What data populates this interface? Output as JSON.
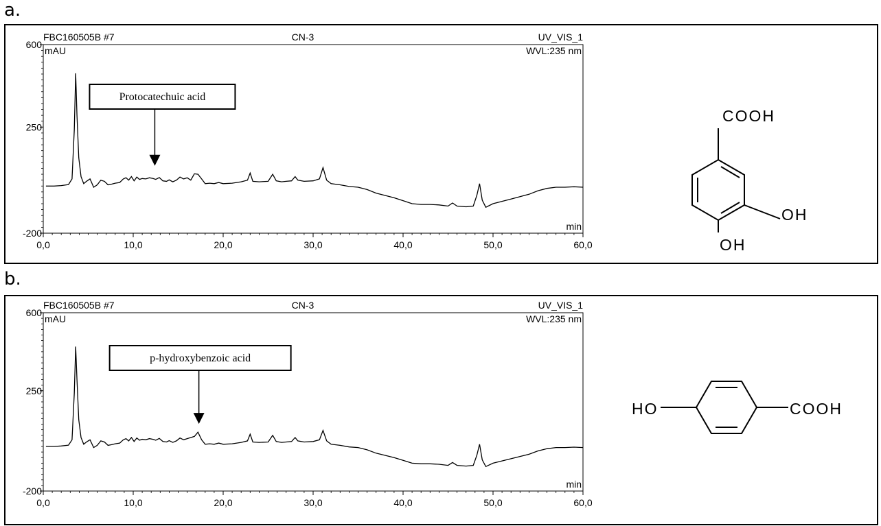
{
  "panels": [
    {
      "letter": "a.",
      "molecule": {
        "type": "protocatechuic",
        "groups": [
          "COOH",
          "OH",
          "OH"
        ]
      },
      "chart_data": {
        "type": "line",
        "header_left": "FBC160505B #7",
        "header_center": "CN-3",
        "header_right": "UV_VIS_1",
        "header_right2": "WVL:235 nm",
        "ylabel": "mAU",
        "xlabel": "min",
        "xlim": [
          0,
          60
        ],
        "ylim": [
          -200,
          600
        ],
        "y_tick_labels": [
          "600",
          "250",
          "-200"
        ],
        "y_tick_values": [
          600,
          250,
          -200
        ],
        "x_tick_labels": [
          "0,0",
          "10,0",
          "20,0",
          "30,0",
          "40,0",
          "50,0",
          "60,0"
        ],
        "x_tick_values": [
          0,
          10,
          20,
          30,
          40,
          50,
          60
        ],
        "annotation": {
          "text": "Protocatechuic acid",
          "x": 12.4,
          "y": 80
        },
        "series": [
          {
            "values": [
              [
                0.3,
                0
              ],
              [
                1.2,
                0
              ],
              [
                2.0,
                2
              ],
              [
                2.8,
                6
              ],
              [
                3.2,
                30
              ],
              [
                3.45,
                240
              ],
              [
                3.6,
                478
              ],
              [
                3.75,
                300
              ],
              [
                3.95,
                120
              ],
              [
                4.2,
                40
              ],
              [
                4.5,
                10
              ],
              [
                4.8,
                20
              ],
              [
                5.2,
                30
              ],
              [
                5.6,
                -5
              ],
              [
                6.0,
                5
              ],
              [
                6.4,
                25
              ],
              [
                6.8,
                20
              ],
              [
                7.2,
                5
              ],
              [
                7.6,
                8
              ],
              [
                8.0,
                12
              ],
              [
                8.5,
                15
              ],
              [
                8.9,
                30
              ],
              [
                9.2,
                35
              ],
              [
                9.5,
                25
              ],
              [
                9.8,
                40
              ],
              [
                10.1,
                22
              ],
              [
                10.4,
                38
              ],
              [
                10.7,
                28
              ],
              [
                11.0,
                32
              ],
              [
                11.4,
                30
              ],
              [
                11.8,
                35
              ],
              [
                12.2,
                32
              ],
              [
                12.5,
                28
              ],
              [
                12.9,
                36
              ],
              [
                13.3,
                22
              ],
              [
                13.7,
                20
              ],
              [
                14.0,
                26
              ],
              [
                14.4,
                18
              ],
              [
                14.8,
                25
              ],
              [
                15.2,
                38
              ],
              [
                15.6,
                30
              ],
              [
                16.0,
                35
              ],
              [
                16.4,
                25
              ],
              [
                16.8,
                52
              ],
              [
                17.2,
                50
              ],
              [
                17.6,
                30
              ],
              [
                18.0,
                10
              ],
              [
                18.5,
                12
              ],
              [
                19.0,
                10
              ],
              [
                19.5,
                15
              ],
              [
                20.0,
                10
              ],
              [
                21.0,
                12
              ],
              [
                22.0,
                18
              ],
              [
                22.7,
                25
              ],
              [
                23.0,
                55
              ],
              [
                23.3,
                20
              ],
              [
                24.0,
                18
              ],
              [
                25.0,
                20
              ],
              [
                25.5,
                50
              ],
              [
                25.9,
                22
              ],
              [
                26.5,
                18
              ],
              [
                27.0,
                20
              ],
              [
                27.6,
                22
              ],
              [
                28.0,
                40
              ],
              [
                28.3,
                25
              ],
              [
                29.0,
                20
              ],
              [
                30.0,
                22
              ],
              [
                30.7,
                30
              ],
              [
                31.1,
                78
              ],
              [
                31.5,
                25
              ],
              [
                32.0,
                10
              ],
              [
                33.0,
                5
              ],
              [
                34.0,
                -2
              ],
              [
                35.0,
                -5
              ],
              [
                36.0,
                -15
              ],
              [
                37.0,
                -30
              ],
              [
                38.0,
                -40
              ],
              [
                39.0,
                -50
              ],
              [
                40.0,
                -62
              ],
              [
                41.0,
                -75
              ],
              [
                42.0,
                -78
              ],
              [
                43.0,
                -78
              ],
              [
                44.0,
                -80
              ],
              [
                45.0,
                -85
              ],
              [
                45.5,
                -72
              ],
              [
                46.0,
                -85
              ],
              [
                47.0,
                -88
              ],
              [
                47.8,
                -85
              ],
              [
                48.2,
                -40
              ],
              [
                48.5,
                10
              ],
              [
                48.8,
                -60
              ],
              [
                49.2,
                -90
              ],
              [
                50.0,
                -75
              ],
              [
                51.0,
                -65
              ],
              [
                52.0,
                -55
              ],
              [
                53.0,
                -45
              ],
              [
                54.0,
                -35
              ],
              [
                55.0,
                -20
              ],
              [
                56.0,
                -10
              ],
              [
                57.0,
                -5
              ],
              [
                58.0,
                -5
              ],
              [
                59.0,
                -3
              ],
              [
                60.0,
                -5
              ]
            ]
          }
        ]
      }
    },
    {
      "letter": "b.",
      "molecule": {
        "type": "p-hydroxybenzoic",
        "groups": [
          "HO",
          "COOH"
        ]
      },
      "chart_data": {
        "type": "line",
        "header_left": "FBC160505B #7",
        "header_center": "CN-3",
        "header_right": "UV_VIS_1",
        "header_right2": "WVL:235 nm",
        "ylabel": "mAU",
        "xlabel": "min",
        "xlim": [
          0,
          60
        ],
        "ylim": [
          -200,
          600
        ],
        "y_tick_labels": [
          "600",
          "250",
          "-200"
        ],
        "y_tick_values": [
          600,
          250,
          -200
        ],
        "x_tick_labels": [
          "0,0",
          "10,0",
          "20,0",
          "30,0",
          "40,0",
          "50,0",
          "60,0"
        ],
        "x_tick_values": [
          0,
          10,
          20,
          30,
          40,
          50,
          60
        ],
        "annotation": {
          "text": "p-hydroxybenzoic acid",
          "x": 17.3,
          "y": 95
        },
        "series": [
          {
            "values": [
              [
                0.3,
                0
              ],
              [
                1.2,
                0
              ],
              [
                2.0,
                2
              ],
              [
                2.8,
                6
              ],
              [
                3.2,
                30
              ],
              [
                3.45,
                240
              ],
              [
                3.6,
                448
              ],
              [
                3.75,
                300
              ],
              [
                3.95,
                120
              ],
              [
                4.2,
                40
              ],
              [
                4.5,
                10
              ],
              [
                4.8,
                20
              ],
              [
                5.2,
                30
              ],
              [
                5.6,
                -5
              ],
              [
                6.0,
                5
              ],
              [
                6.4,
                25
              ],
              [
                6.8,
                20
              ],
              [
                7.2,
                5
              ],
              [
                7.6,
                8
              ],
              [
                8.0,
                12
              ],
              [
                8.5,
                15
              ],
              [
                8.9,
                30
              ],
              [
                9.2,
                35
              ],
              [
                9.5,
                25
              ],
              [
                9.8,
                40
              ],
              [
                10.1,
                22
              ],
              [
                10.4,
                38
              ],
              [
                10.7,
                28
              ],
              [
                11.0,
                32
              ],
              [
                11.4,
                30
              ],
              [
                11.8,
                35
              ],
              [
                12.2,
                32
              ],
              [
                12.5,
                28
              ],
              [
                12.9,
                36
              ],
              [
                13.3,
                22
              ],
              [
                13.7,
                20
              ],
              [
                14.0,
                26
              ],
              [
                14.4,
                18
              ],
              [
                14.8,
                25
              ],
              [
                15.2,
                38
              ],
              [
                15.6,
                30
              ],
              [
                16.0,
                35
              ],
              [
                16.4,
                40
              ],
              [
                16.8,
                45
              ],
              [
                17.2,
                64
              ],
              [
                17.6,
                30
              ],
              [
                18.0,
                10
              ],
              [
                18.5,
                12
              ],
              [
                19.0,
                10
              ],
              [
                19.5,
                15
              ],
              [
                20.0,
                10
              ],
              [
                21.0,
                12
              ],
              [
                22.0,
                18
              ],
              [
                22.7,
                25
              ],
              [
                23.0,
                55
              ],
              [
                23.3,
                20
              ],
              [
                24.0,
                18
              ],
              [
                25.0,
                20
              ],
              [
                25.5,
                50
              ],
              [
                25.9,
                22
              ],
              [
                26.5,
                18
              ],
              [
                27.0,
                20
              ],
              [
                27.6,
                22
              ],
              [
                28.0,
                40
              ],
              [
                28.3,
                25
              ],
              [
                29.0,
                20
              ],
              [
                30.0,
                22
              ],
              [
                30.7,
                30
              ],
              [
                31.1,
                72
              ],
              [
                31.5,
                25
              ],
              [
                32.0,
                10
              ],
              [
                33.0,
                5
              ],
              [
                34.0,
                -2
              ],
              [
                35.0,
                -5
              ],
              [
                36.0,
                -15
              ],
              [
                37.0,
                -30
              ],
              [
                38.0,
                -40
              ],
              [
                39.0,
                -50
              ],
              [
                40.0,
                -62
              ],
              [
                41.0,
                -75
              ],
              [
                42.0,
                -78
              ],
              [
                43.0,
                -78
              ],
              [
                44.0,
                -80
              ],
              [
                45.0,
                -85
              ],
              [
                45.5,
                -72
              ],
              [
                46.0,
                -85
              ],
              [
                47.0,
                -88
              ],
              [
                47.8,
                -85
              ],
              [
                48.2,
                -40
              ],
              [
                48.5,
                10
              ],
              [
                48.8,
                -60
              ],
              [
                49.2,
                -90
              ],
              [
                50.0,
                -75
              ],
              [
                51.0,
                -65
              ],
              [
                52.0,
                -55
              ],
              [
                53.0,
                -45
              ],
              [
                54.0,
                -35
              ],
              [
                55.0,
                -20
              ],
              [
                56.0,
                -10
              ],
              [
                57.0,
                -5
              ],
              [
                58.0,
                -5
              ],
              [
                59.0,
                -3
              ],
              [
                60.0,
                -5
              ]
            ]
          }
        ]
      }
    }
  ]
}
